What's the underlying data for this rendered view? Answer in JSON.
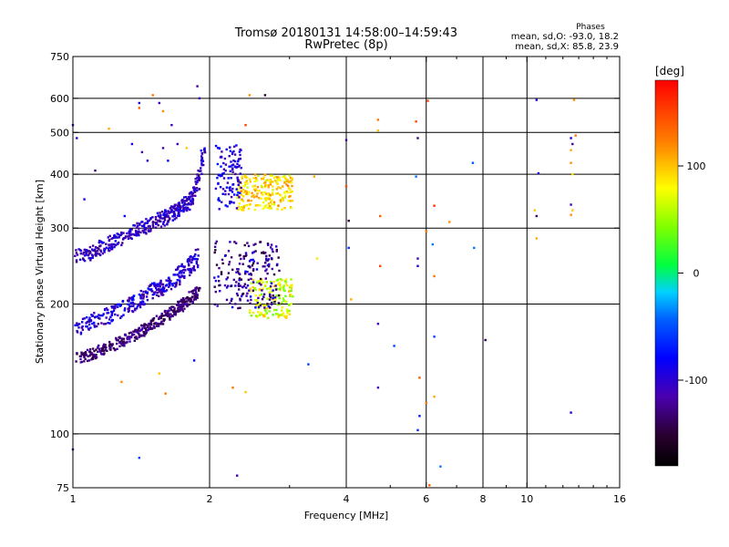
{
  "header": {
    "title": "Tromsø 20180131 14:58:00–14:59:43",
    "subtitle": "RwPretec (8p)",
    "stats_title": "Phases",
    "stats_o": "mean, sd,O: -93.0, 18.2",
    "stats_x": "mean, sd,X: 85.8, 23.9"
  },
  "chart_data": {
    "type": "scatter",
    "xlabel": "Frequency [MHz]",
    "ylabel": "Stationary phase Virtual Height [km]",
    "x_scale": "log",
    "y_scale": "log",
    "xlim": [
      1,
      16
    ],
    "ylim": [
      75,
      750
    ],
    "x_ticks": [
      1,
      2,
      4,
      6,
      8,
      10,
      16
    ],
    "x_tick_labels": [
      "1",
      "2",
      "4",
      "6",
      "8",
      "10",
      "16"
    ],
    "y_ticks": [
      75,
      100,
      200,
      300,
      400,
      500,
      600,
      750
    ],
    "y_tick_labels": [
      "75",
      "100",
      "200",
      "300",
      "400",
      "500",
      "600",
      "750"
    ],
    "grid": true,
    "colorbar": {
      "label": "[deg]",
      "range": [
        -180,
        180
      ],
      "ticks": [
        -100,
        0,
        100
      ],
      "tick_labels": [
        "-100",
        "0",
        "100"
      ]
    },
    "trace_o_upper": {
      "x": [
        1.02,
        1.08,
        1.15,
        1.22,
        1.3,
        1.4,
        1.5,
        1.6,
        1.7,
        1.8,
        1.86,
        1.9,
        1.95
      ],
      "y": [
        258,
        262,
        270,
        278,
        288,
        298,
        308,
        318,
        330,
        345,
        365,
        400,
        470
      ],
      "value": -110
    },
    "trace_o_lower": {
      "x": [
        1.02,
        1.08,
        1.15,
        1.22,
        1.3,
        1.4,
        1.5,
        1.6,
        1.7,
        1.8,
        1.9
      ],
      "y": [
        150,
        152,
        156,
        160,
        165,
        172,
        180,
        188,
        195,
        205,
        215
      ],
      "value": -130
    },
    "trace_o_lower_top": {
      "x": [
        1.02,
        1.08,
        1.15,
        1.22,
        1.3,
        1.4,
        1.5,
        1.6,
        1.7,
        1.8,
        1.9
      ],
      "y": [
        175,
        180,
        186,
        190,
        196,
        204,
        214,
        222,
        232,
        244,
        260
      ],
      "value": -105
    },
    "cluster_x_upper": {
      "x": [
        2.3,
        3.05
      ],
      "y": [
        330,
        400
      ],
      "value": 95
    },
    "cluster_x_upper_edge": {
      "x": [
        2.05,
        2.35
      ],
      "y": [
        330,
        470
      ],
      "value": -100
    },
    "cluster_x_lower": {
      "x": [
        2.45,
        3.05
      ],
      "y": [
        185,
        230
      ],
      "value": 70
    },
    "cluster_mixed_lower": {
      "x": [
        2.05,
        2.85
      ],
      "y": [
        195,
        280
      ],
      "value": -120
    },
    "scatter_points": [
      {
        "x": 1.0,
        "y": 520,
        "v": -110
      },
      {
        "x": 1.02,
        "y": 485,
        "v": -100
      },
      {
        "x": 1.06,
        "y": 350,
        "v": -100
      },
      {
        "x": 1.12,
        "y": 408,
        "v": -130
      },
      {
        "x": 1.0,
        "y": 92,
        "v": -120
      },
      {
        "x": 1.4,
        "y": 88,
        "v": -60
      },
      {
        "x": 1.2,
        "y": 510,
        "v": 110
      },
      {
        "x": 1.3,
        "y": 320,
        "v": -90
      },
      {
        "x": 1.4,
        "y": 585,
        "v": -100
      },
      {
        "x": 1.4,
        "y": 570,
        "v": 140
      },
      {
        "x": 1.5,
        "y": 610,
        "v": 130
      },
      {
        "x": 1.55,
        "y": 585,
        "v": -110
      },
      {
        "x": 1.58,
        "y": 560,
        "v": 120
      },
      {
        "x": 1.65,
        "y": 520,
        "v": -110
      },
      {
        "x": 1.35,
        "y": 470,
        "v": -100
      },
      {
        "x": 1.42,
        "y": 450,
        "v": -120
      },
      {
        "x": 1.46,
        "y": 430,
        "v": -100
      },
      {
        "x": 1.58,
        "y": 460,
        "v": -120
      },
      {
        "x": 1.62,
        "y": 430,
        "v": -90
      },
      {
        "x": 1.7,
        "y": 470,
        "v": -110
      },
      {
        "x": 1.78,
        "y": 460,
        "v": 100
      },
      {
        "x": 1.88,
        "y": 640,
        "v": -120
      },
      {
        "x": 1.9,
        "y": 600,
        "v": -110
      },
      {
        "x": 2.45,
        "y": 610,
        "v": 120
      },
      {
        "x": 2.65,
        "y": 610,
        "v": -150
      },
      {
        "x": 2.4,
        "y": 520,
        "v": 150
      },
      {
        "x": 2.3,
        "y": 80,
        "v": -110
      },
      {
        "x": 1.28,
        "y": 132,
        "v": 120
      },
      {
        "x": 1.55,
        "y": 138,
        "v": 100
      },
      {
        "x": 1.6,
        "y": 124,
        "v": 130
      },
      {
        "x": 1.85,
        "y": 148,
        "v": -90
      },
      {
        "x": 2.25,
        "y": 128,
        "v": 130
      },
      {
        "x": 2.4,
        "y": 125,
        "v": 100
      },
      {
        "x": 3.3,
        "y": 145,
        "v": -60
      },
      {
        "x": 3.4,
        "y": 395,
        "v": 110
      },
      {
        "x": 3.45,
        "y": 255,
        "v": 90
      },
      {
        "x": 4.0,
        "y": 480,
        "v": -120
      },
      {
        "x": 4.0,
        "y": 375,
        "v": 150
      },
      {
        "x": 4.05,
        "y": 312,
        "v": -150
      },
      {
        "x": 4.05,
        "y": 270,
        "v": -70
      },
      {
        "x": 4.1,
        "y": 205,
        "v": 110
      },
      {
        "x": 4.7,
        "y": 535,
        "v": 130
      },
      {
        "x": 4.7,
        "y": 505,
        "v": 100
      },
      {
        "x": 4.75,
        "y": 320,
        "v": 140
      },
      {
        "x": 4.75,
        "y": 245,
        "v": 150
      },
      {
        "x": 4.7,
        "y": 180,
        "v": -110
      },
      {
        "x": 4.7,
        "y": 128,
        "v": -110
      },
      {
        "x": 5.1,
        "y": 160,
        "v": -60
      },
      {
        "x": 5.7,
        "y": 530,
        "v": 150
      },
      {
        "x": 5.75,
        "y": 485,
        "v": -130
      },
      {
        "x": 5.7,
        "y": 395,
        "v": -40
      },
      {
        "x": 5.75,
        "y": 255,
        "v": -110
      },
      {
        "x": 5.75,
        "y": 245,
        "v": -100
      },
      {
        "x": 5.8,
        "y": 135,
        "v": 140
      },
      {
        "x": 5.75,
        "y": 102,
        "v": -70
      },
      {
        "x": 5.8,
        "y": 110,
        "v": -80
      },
      {
        "x": 6.05,
        "y": 592,
        "v": 150
      },
      {
        "x": 6.0,
        "y": 295,
        "v": 130
      },
      {
        "x": 6.0,
        "y": 118,
        "v": 130
      },
      {
        "x": 6.1,
        "y": 76,
        "v": 140
      },
      {
        "x": 6.25,
        "y": 338,
        "v": 160
      },
      {
        "x": 6.2,
        "y": 275,
        "v": -40
      },
      {
        "x": 6.25,
        "y": 232,
        "v": 130
      },
      {
        "x": 6.25,
        "y": 168,
        "v": -60
      },
      {
        "x": 6.25,
        "y": 122,
        "v": 110
      },
      {
        "x": 6.45,
        "y": 84,
        "v": -40
      },
      {
        "x": 6.75,
        "y": 310,
        "v": 120
      },
      {
        "x": 7.6,
        "y": 425,
        "v": -50
      },
      {
        "x": 7.65,
        "y": 270,
        "v": -40
      },
      {
        "x": 8.1,
        "y": 165,
        "v": -140
      },
      {
        "x": 10.5,
        "y": 595,
        "v": -100
      },
      {
        "x": 10.6,
        "y": 402,
        "v": -100
      },
      {
        "x": 10.4,
        "y": 330,
        "v": 100
      },
      {
        "x": 10.5,
        "y": 320,
        "v": -130
      },
      {
        "x": 10.5,
        "y": 284,
        "v": 110
      },
      {
        "x": 12.5,
        "y": 485,
        "v": -100
      },
      {
        "x": 12.6,
        "y": 470,
        "v": -120
      },
      {
        "x": 12.5,
        "y": 455,
        "v": 110
      },
      {
        "x": 12.5,
        "y": 425,
        "v": 120
      },
      {
        "x": 12.6,
        "y": 400,
        "v": 90
      },
      {
        "x": 12.5,
        "y": 340,
        "v": -110
      },
      {
        "x": 12.6,
        "y": 330,
        "v": 100
      },
      {
        "x": 12.5,
        "y": 322,
        "v": 120
      },
      {
        "x": 12.5,
        "y": 112,
        "v": -100
      },
      {
        "x": 12.7,
        "y": 595,
        "v": 120
      },
      {
        "x": 12.8,
        "y": 492,
        "v": 130
      }
    ]
  }
}
